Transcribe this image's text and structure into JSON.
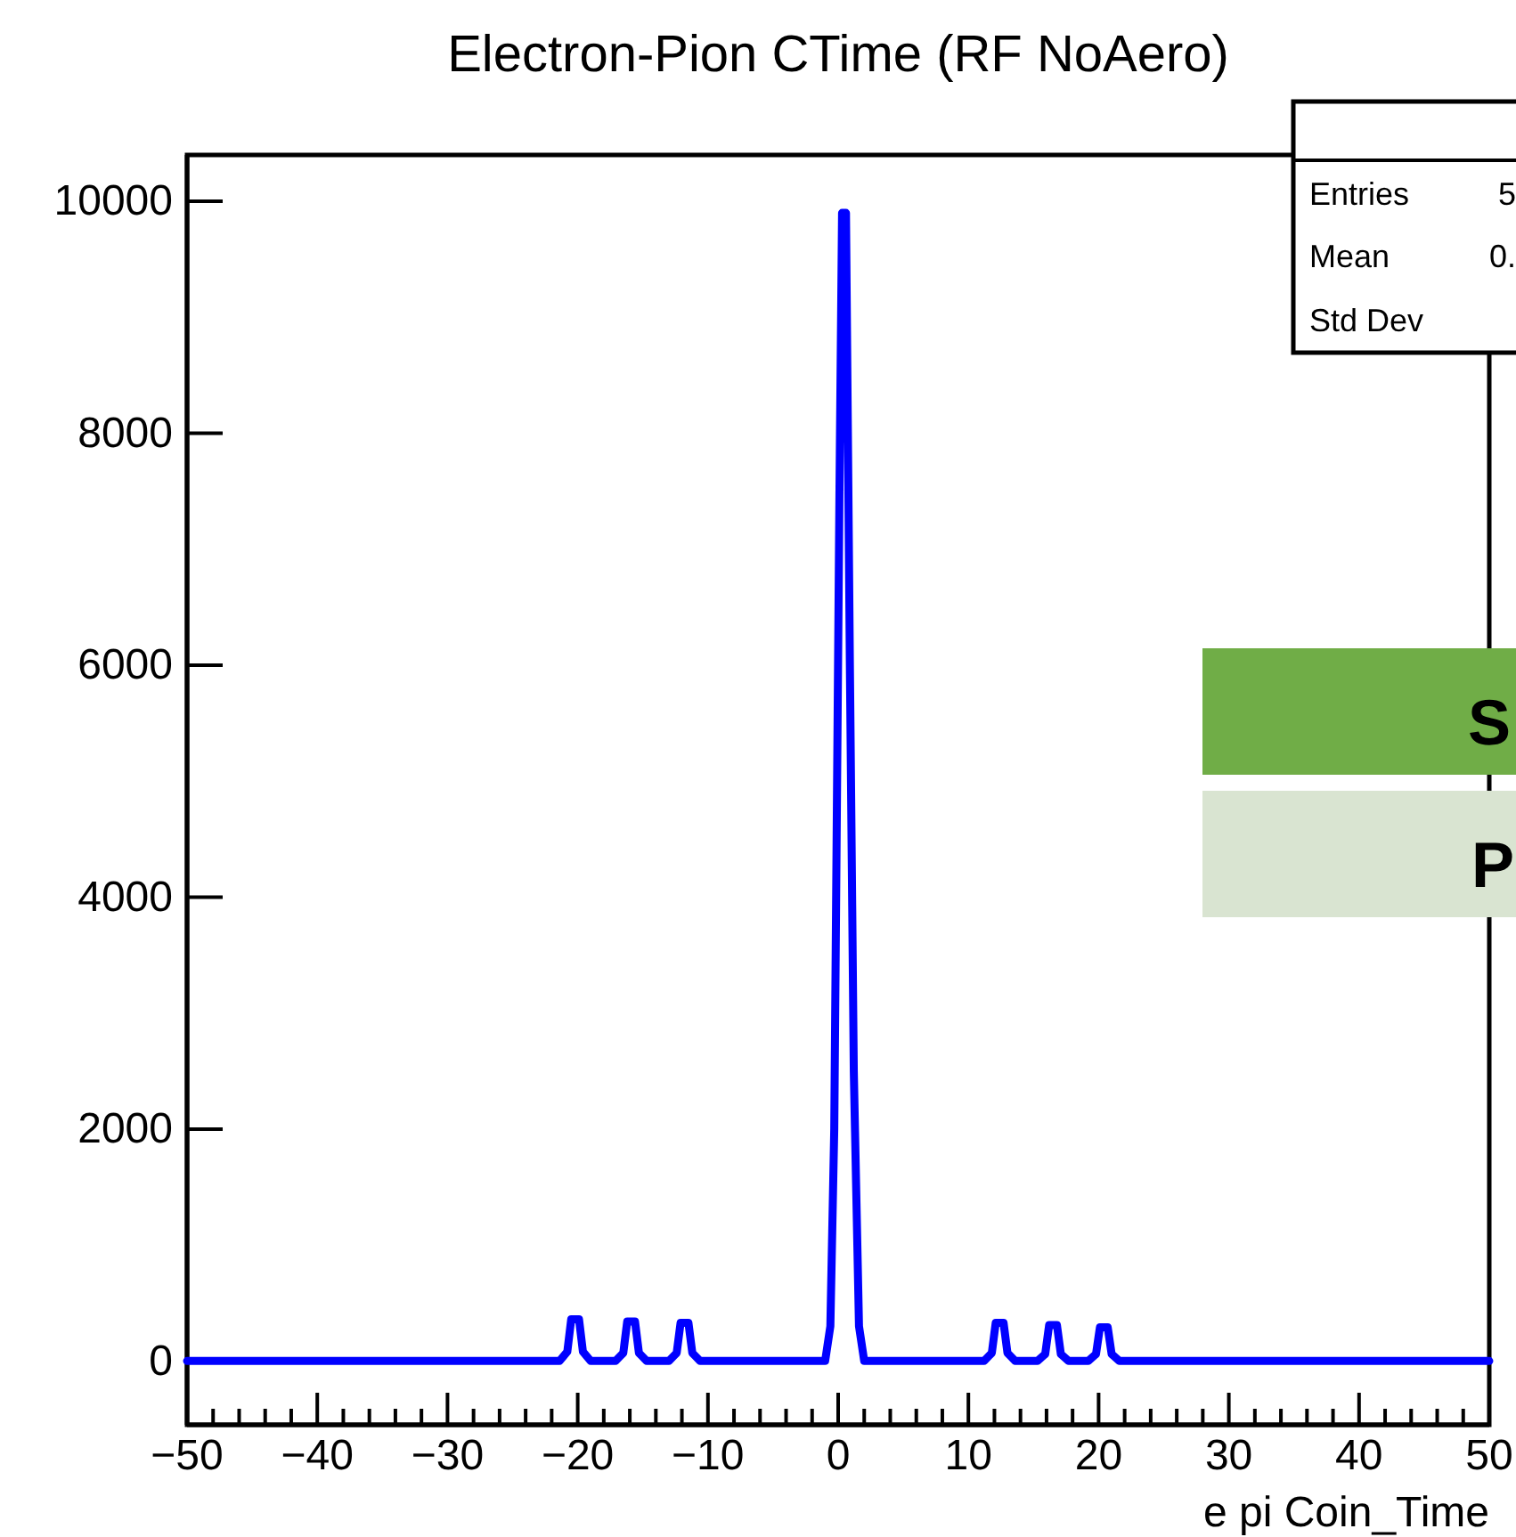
{
  "chart_data": {
    "type": "line",
    "title": "Electron-Pion CTime (RF NoAero)",
    "xlabel": "e pi Coin_Time",
    "xlim": [
      -50,
      50
    ],
    "xticks": [
      -50,
      {
        "value": -48,
        "label": null
      },
      {
        "value": -46,
        "label": null
      },
      {
        "value": -44,
        "label": null
      },
      {
        "value": -42,
        "label": null
      },
      -40,
      {
        "value": -38,
        "label": null
      },
      {
        "value": -36,
        "label": null
      },
      {
        "value": -34,
        "label": null
      },
      {
        "value": -32,
        "label": null
      },
      -30,
      {
        "value": -28,
        "label": null
      },
      {
        "value": -26,
        "label": null
      },
      {
        "value": -24,
        "label": null
      },
      {
        "value": -22,
        "label": null
      },
      -20,
      {
        "value": -18,
        "label": null
      },
      {
        "value": -16,
        "label": null
      },
      {
        "value": -14,
        "label": null
      },
      {
        "value": -12,
        "label": null
      },
      -10,
      {
        "value": -8,
        "label": null
      },
      {
        "value": -6,
        "label": null
      },
      {
        "value": -4,
        "label": null
      },
      {
        "value": -2,
        "label": null
      },
      0,
      {
        "value": 2,
        "label": null
      },
      {
        "value": 4,
        "label": null
      },
      {
        "value": 6,
        "label": null
      },
      {
        "value": 8,
        "label": null
      },
      10,
      {
        "value": 12,
        "label": null
      },
      {
        "value": 14,
        "label": null
      },
      {
        "value": 16,
        "label": null
      },
      {
        "value": 18,
        "label": null
      },
      20,
      {
        "value": 22,
        "label": null
      },
      {
        "value": 24,
        "label": null
      },
      {
        "value": 26,
        "label": null
      },
      {
        "value": 28,
        "label": null
      },
      30,
      {
        "value": 32,
        "label": null
      },
      {
        "value": 34,
        "label": null
      },
      {
        "value": 36,
        "label": null
      },
      {
        "value": 38,
        "label": null
      },
      40,
      {
        "value": 42,
        "label": null
      },
      {
        "value": 44,
        "label": null
      },
      {
        "value": 46,
        "label": null
      },
      {
        "value": 48,
        "label": null
      },
      50
    ],
    "ylim": [
      -550,
      10400
    ],
    "yticks": [
      0,
      2000,
      4000,
      6000,
      8000,
      10000
    ],
    "grid": false,
    "legend": false,
    "marker": "none",
    "line_style": "solid",
    "series": [
      {
        "color": "#0000ff",
        "x": [
          -50,
          -21.4,
          -20.8,
          -20.5,
          -19.9,
          -19.6,
          -19.0,
          -17.1,
          -16.5,
          -16.2,
          -15.6,
          -15.3,
          -14.7,
          -13.0,
          -12.4,
          -12.1,
          -11.5,
          -11.2,
          -10.6,
          -1.0,
          -0.6,
          -0.3,
          0.1,
          0.3,
          0.6,
          0.9,
          1.2,
          1.6,
          2.0,
          11.2,
          11.8,
          12.1,
          12.7,
          13.0,
          13.6,
          15.3,
          15.9,
          16.2,
          16.8,
          17.1,
          17.7,
          19.2,
          19.8,
          20.1,
          20.7,
          21.0,
          21.6,
          50
        ],
        "values": [
          0,
          0,
          80,
          360,
          360,
          80,
          0,
          0,
          70,
          340,
          340,
          70,
          0,
          0,
          70,
          330,
          330,
          70,
          0,
          0,
          300,
          2000,
          7500,
          9900,
          9900,
          6000,
          2500,
          300,
          0,
          0,
          70,
          330,
          330,
          70,
          0,
          0,
          60,
          310,
          310,
          60,
          0,
          0,
          60,
          290,
          290,
          60,
          0,
          0
        ]
      }
    ],
    "annotations": [
      "Entries",
      "5",
      "Mean",
      "0.",
      "Std Dev",
      "S",
      "P"
    ]
  }
}
